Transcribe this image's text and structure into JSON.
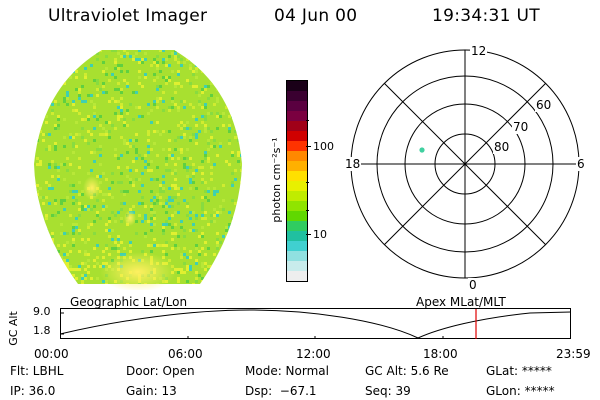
{
  "header": {
    "title": "Ultraviolet Imager",
    "date": "04 Jun 00",
    "time": "19:34:31 UT"
  },
  "colorbar": {
    "unit_label": "photon cm⁻²s⁻¹",
    "ticks": [
      "100",
      "10"
    ],
    "colors": [
      "#1a0018",
      "#3a0030",
      "#5a0040",
      "#7a0040",
      "#a00018",
      "#d00000",
      "#ff3300",
      "#ff8800",
      "#ffb000",
      "#ffe000",
      "#e8f000",
      "#c0ec00",
      "#90e400",
      "#60d800",
      "#30cc60",
      "#20c0a0",
      "#40d0d0",
      "#90e0e0",
      "#c8ecec",
      "#eeeeee"
    ]
  },
  "polar_grid": {
    "mlt_labels": [
      "12",
      "18",
      "6",
      "0"
    ],
    "lat_labels": [
      "60",
      "70",
      "80"
    ],
    "marker_color": "#40d0a0"
  },
  "image": {
    "base_color": "#a8e030",
    "palette": [
      "#60d040",
      "#b8e838",
      "#e0f030",
      "#40d0b0",
      "#88dc40",
      "#d0ec30"
    ]
  },
  "timeline": {
    "left_label": "Geographic Lat/Lon",
    "right_label": "Apex MLat/MLT",
    "yaxis_label": "GC Alt",
    "ytick_top": "9.0",
    "ytick_bottom": "1.8",
    "xticks": [
      "00:00",
      "06:00",
      "12:00",
      "18:00",
      "23:59"
    ],
    "cursor_color": "#e00000"
  },
  "info": {
    "filter": "Flt: LBHL",
    "ip": "IP: 36.0",
    "door": "Door: Open",
    "gain": "Gain: 13",
    "mode": "Mode: Normal",
    "dsp": "Dsp:  −67.1",
    "gc_alt": "GC Alt: 5.6 Re",
    "seq": "Seq: 39",
    "glat": "GLat: *****",
    "glon": "GLon: *****"
  }
}
